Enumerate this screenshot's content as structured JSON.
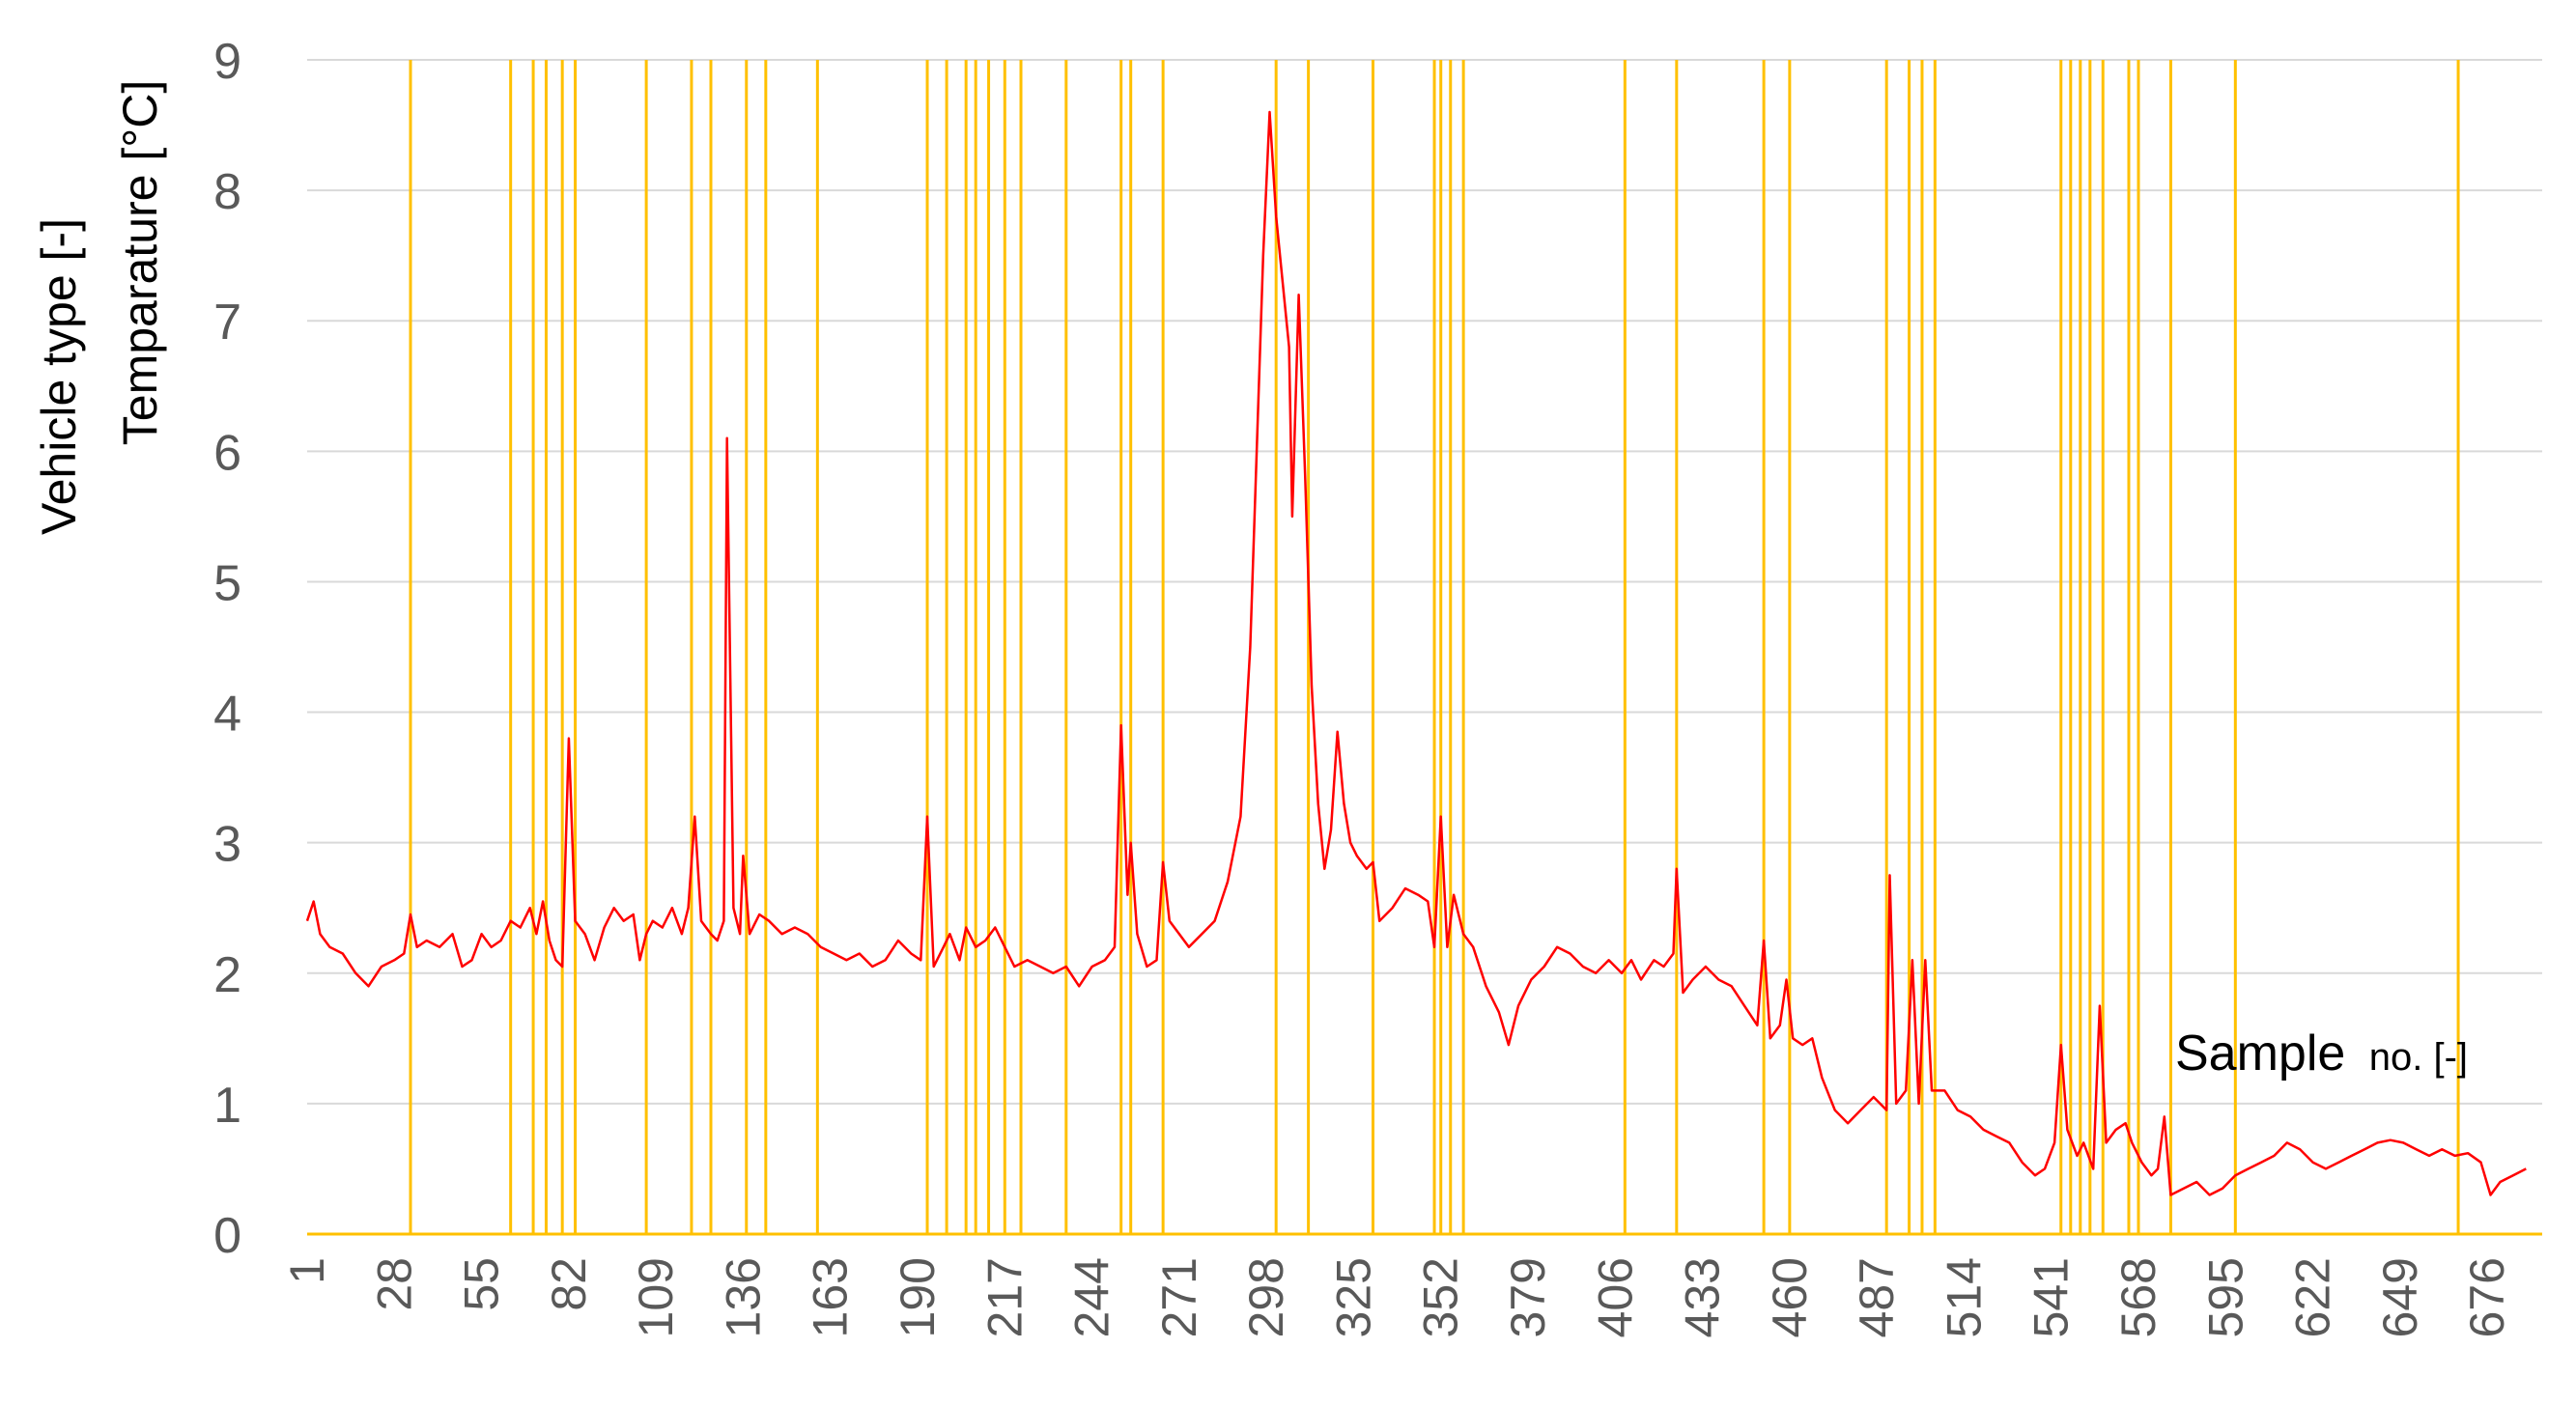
{
  "chart_data": {
    "type": "line",
    "ylabel_lines": [
      "Vehicle type [-]",
      "Temparature [°C]"
    ],
    "xlabel_main": "Sample",
    "xlabel_small": "no. [-]",
    "ylim": [
      0,
      9
    ],
    "yticks": [
      0,
      1,
      2,
      3,
      4,
      5,
      6,
      7,
      8,
      9
    ],
    "xlim": [
      1,
      693
    ],
    "xticks": [
      1,
      28,
      55,
      82,
      109,
      136,
      163,
      190,
      217,
      244,
      271,
      298,
      325,
      352,
      379,
      406,
      433,
      460,
      487,
      514,
      541,
      568,
      595,
      622,
      649,
      676
    ],
    "grid": true,
    "colors": {
      "vehicle": "#ffc000",
      "temperature": "#ff0000",
      "grid": "#d9d9d9",
      "tick_text": "#595959"
    },
    "series": [
      {
        "key": "vehicle",
        "event_value": 9,
        "base_value": 0,
        "event_samples": [
          33,
          64,
          71,
          75,
          80,
          84,
          106,
          120,
          126,
          137,
          143,
          159,
          193,
          199,
          205,
          208,
          212,
          217,
          222,
          236,
          253,
          256,
          266,
          301,
          311,
          331,
          350,
          352,
          355,
          359,
          409,
          425,
          452,
          460,
          490,
          497,
          501,
          505,
          544,
          547,
          550,
          553,
          557,
          565,
          568,
          578,
          598,
          667
        ]
      },
      {
        "key": "temperature",
        "points": [
          [
            1,
            2.4
          ],
          [
            3,
            2.55
          ],
          [
            5,
            2.3
          ],
          [
            8,
            2.2
          ],
          [
            12,
            2.15
          ],
          [
            16,
            2.0
          ],
          [
            20,
            1.9
          ],
          [
            24,
            2.05
          ],
          [
            28,
            2.1
          ],
          [
            31,
            2.15
          ],
          [
            33,
            2.45
          ],
          [
            35,
            2.2
          ],
          [
            38,
            2.25
          ],
          [
            42,
            2.2
          ],
          [
            46,
            2.3
          ],
          [
            49,
            2.05
          ],
          [
            52,
            2.1
          ],
          [
            55,
            2.3
          ],
          [
            58,
            2.2
          ],
          [
            61,
            2.25
          ],
          [
            64,
            2.4
          ],
          [
            67,
            2.35
          ],
          [
            70,
            2.5
          ],
          [
            72,
            2.3
          ],
          [
            74,
            2.55
          ],
          [
            76,
            2.25
          ],
          [
            78,
            2.1
          ],
          [
            80,
            2.05
          ],
          [
            82,
            3.8
          ],
          [
            84,
            2.4
          ],
          [
            87,
            2.3
          ],
          [
            90,
            2.1
          ],
          [
            93,
            2.35
          ],
          [
            96,
            2.5
          ],
          [
            99,
            2.4
          ],
          [
            102,
            2.45
          ],
          [
            104,
            2.1
          ],
          [
            106,
            2.3
          ],
          [
            108,
            2.4
          ],
          [
            111,
            2.35
          ],
          [
            114,
            2.5
          ],
          [
            117,
            2.3
          ],
          [
            119,
            2.5
          ],
          [
            121,
            3.2
          ],
          [
            123,
            2.4
          ],
          [
            126,
            2.3
          ],
          [
            128,
            2.25
          ],
          [
            130,
            2.4
          ],
          [
            131,
            6.1
          ],
          [
            133,
            2.5
          ],
          [
            135,
            2.3
          ],
          [
            136,
            2.9
          ],
          [
            138,
            2.3
          ],
          [
            141,
            2.45
          ],
          [
            144,
            2.4
          ],
          [
            148,
            2.3
          ],
          [
            152,
            2.35
          ],
          [
            156,
            2.3
          ],
          [
            160,
            2.2
          ],
          [
            164,
            2.15
          ],
          [
            168,
            2.1
          ],
          [
            172,
            2.15
          ],
          [
            176,
            2.05
          ],
          [
            180,
            2.1
          ],
          [
            184,
            2.25
          ],
          [
            188,
            2.15
          ],
          [
            191,
            2.1
          ],
          [
            193,
            3.2
          ],
          [
            195,
            2.05
          ],
          [
            198,
            2.2
          ],
          [
            200,
            2.3
          ],
          [
            203,
            2.1
          ],
          [
            205,
            2.35
          ],
          [
            208,
            2.2
          ],
          [
            211,
            2.25
          ],
          [
            214,
            2.35
          ],
          [
            217,
            2.2
          ],
          [
            220,
            2.05
          ],
          [
            224,
            2.1
          ],
          [
            228,
            2.05
          ],
          [
            232,
            2.0
          ],
          [
            236,
            2.05
          ],
          [
            240,
            1.9
          ],
          [
            244,
            2.05
          ],
          [
            248,
            2.1
          ],
          [
            251,
            2.2
          ],
          [
            253,
            3.9
          ],
          [
            255,
            2.6
          ],
          [
            256,
            3.0
          ],
          [
            258,
            2.3
          ],
          [
            261,
            2.05
          ],
          [
            264,
            2.1
          ],
          [
            266,
            2.85
          ],
          [
            268,
            2.4
          ],
          [
            271,
            2.3
          ],
          [
            274,
            2.2
          ],
          [
            278,
            2.3
          ],
          [
            282,
            2.4
          ],
          [
            286,
            2.7
          ],
          [
            290,
            3.2
          ],
          [
            293,
            4.5
          ],
          [
            295,
            6.0
          ],
          [
            297,
            7.5
          ],
          [
            299,
            8.6
          ],
          [
            301,
            7.8
          ],
          [
            303,
            7.3
          ],
          [
            305,
            6.8
          ],
          [
            306,
            5.5
          ],
          [
            308,
            7.2
          ],
          [
            310,
            5.8
          ],
          [
            312,
            4.2
          ],
          [
            314,
            3.3
          ],
          [
            316,
            2.8
          ],
          [
            318,
            3.1
          ],
          [
            320,
            3.85
          ],
          [
            322,
            3.3
          ],
          [
            324,
            3.0
          ],
          [
            326,
            2.9
          ],
          [
            329,
            2.8
          ],
          [
            331,
            2.85
          ],
          [
            333,
            2.4
          ],
          [
            337,
            2.5
          ],
          [
            341,
            2.65
          ],
          [
            345,
            2.6
          ],
          [
            348,
            2.55
          ],
          [
            350,
            2.2
          ],
          [
            352,
            3.2
          ],
          [
            354,
            2.2
          ],
          [
            356,
            2.6
          ],
          [
            359,
            2.3
          ],
          [
            362,
            2.2
          ],
          [
            366,
            1.9
          ],
          [
            370,
            1.7
          ],
          [
            373,
            1.45
          ],
          [
            376,
            1.75
          ],
          [
            380,
            1.95
          ],
          [
            384,
            2.05
          ],
          [
            388,
            2.2
          ],
          [
            392,
            2.15
          ],
          [
            396,
            2.05
          ],
          [
            400,
            2.0
          ],
          [
            404,
            2.1
          ],
          [
            408,
            2.0
          ],
          [
            411,
            2.1
          ],
          [
            414,
            1.95
          ],
          [
            418,
            2.1
          ],
          [
            421,
            2.05
          ],
          [
            424,
            2.15
          ],
          [
            425,
            2.8
          ],
          [
            427,
            1.85
          ],
          [
            430,
            1.95
          ],
          [
            434,
            2.05
          ],
          [
            438,
            1.95
          ],
          [
            442,
            1.9
          ],
          [
            446,
            1.75
          ],
          [
            450,
            1.6
          ],
          [
            452,
            2.25
          ],
          [
            454,
            1.5
          ],
          [
            457,
            1.6
          ],
          [
            459,
            1.95
          ],
          [
            461,
            1.5
          ],
          [
            464,
            1.45
          ],
          [
            467,
            1.5
          ],
          [
            470,
            1.2
          ],
          [
            474,
            0.95
          ],
          [
            478,
            0.85
          ],
          [
            482,
            0.95
          ],
          [
            486,
            1.05
          ],
          [
            490,
            0.95
          ],
          [
            491,
            2.75
          ],
          [
            493,
            1.0
          ],
          [
            496,
            1.1
          ],
          [
            498,
            2.1
          ],
          [
            500,
            1.0
          ],
          [
            502,
            2.1
          ],
          [
            504,
            1.1
          ],
          [
            508,
            1.1
          ],
          [
            512,
            0.95
          ],
          [
            516,
            0.9
          ],
          [
            520,
            0.8
          ],
          [
            524,
            0.75
          ],
          [
            528,
            0.7
          ],
          [
            532,
            0.55
          ],
          [
            536,
            0.45
          ],
          [
            539,
            0.5
          ],
          [
            542,
            0.7
          ],
          [
            544,
            1.45
          ],
          [
            546,
            0.8
          ],
          [
            549,
            0.6
          ],
          [
            551,
            0.7
          ],
          [
            554,
            0.5
          ],
          [
            556,
            1.75
          ],
          [
            558,
            0.7
          ],
          [
            561,
            0.8
          ],
          [
            564,
            0.85
          ],
          [
            566,
            0.7
          ],
          [
            569,
            0.55
          ],
          [
            572,
            0.45
          ],
          [
            574,
            0.5
          ],
          [
            576,
            0.9
          ],
          [
            578,
            0.3
          ],
          [
            582,
            0.35
          ],
          [
            586,
            0.4
          ],
          [
            590,
            0.3
          ],
          [
            594,
            0.35
          ],
          [
            598,
            0.45
          ],
          [
            602,
            0.5
          ],
          [
            606,
            0.55
          ],
          [
            610,
            0.6
          ],
          [
            614,
            0.7
          ],
          [
            618,
            0.65
          ],
          [
            622,
            0.55
          ],
          [
            626,
            0.5
          ],
          [
            630,
            0.55
          ],
          [
            634,
            0.6
          ],
          [
            638,
            0.65
          ],
          [
            642,
            0.7
          ],
          [
            646,
            0.72
          ],
          [
            650,
            0.7
          ],
          [
            654,
            0.65
          ],
          [
            658,
            0.6
          ],
          [
            662,
            0.65
          ],
          [
            666,
            0.6
          ],
          [
            670,
            0.62
          ],
          [
            674,
            0.55
          ],
          [
            677,
            0.3
          ],
          [
            680,
            0.4
          ],
          [
            684,
            0.45
          ],
          [
            688,
            0.5
          ]
        ]
      }
    ]
  }
}
